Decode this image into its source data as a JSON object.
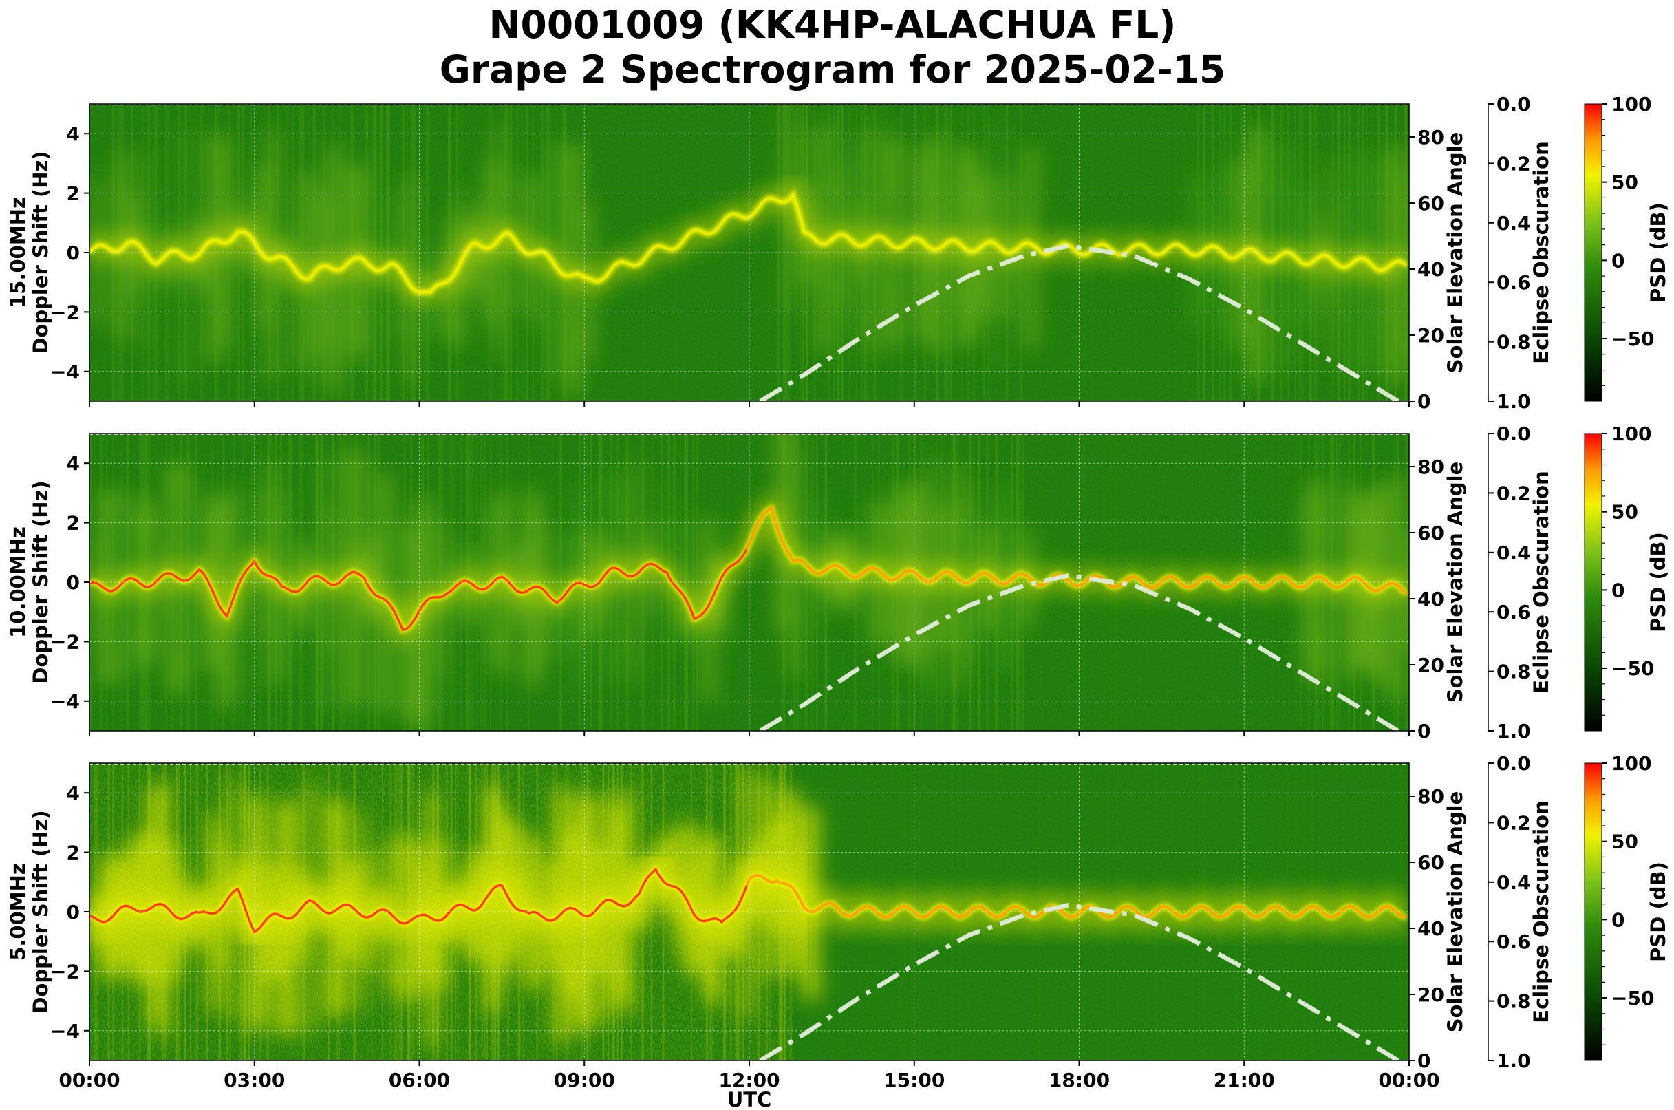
{
  "figure": {
    "title_line1": "N0001009 (KK4HP-ALACHUA FL)",
    "title_line2": "Grape 2 Spectrogram for 2025-02-15"
  },
  "colors": {
    "bg_green": "#1f7a0a",
    "mid_green": "#3f9d12",
    "yellow": "#f2f200",
    "orange": "#ff9a00",
    "red": "#ff1a00",
    "solar_curve": "#dbe8d2",
    "grid": "#ffffff"
  },
  "chart_data": [
    {
      "type": "heatmap",
      "panel": "15.00MHz",
      "ylabel": "15.00MHz\nDoppler Shift (Hz)",
      "ylabel_line1": "15.00MHz",
      "ylabel_line2": "Doppler Shift (Hz)",
      "xlim_hours": [
        0,
        24
      ],
      "ylim": [
        -5,
        5
      ],
      "yticks": [
        "4",
        "2",
        "0",
        "−2",
        "−4"
      ],
      "right_axis": {
        "label": "Solar Elevation Angle",
        "ylim": [
          0,
          90
        ],
        "ticks": [
          "0",
          "20",
          "40",
          "60",
          "80"
        ]
      },
      "eclipse_axis": {
        "label": "Eclipse Obscuration",
        "ylim": [
          0,
          1
        ],
        "inverted": true,
        "ticks": [
          "0.0",
          "0.2",
          "0.4",
          "0.6",
          "0.8",
          "1.0"
        ]
      },
      "colorbar": {
        "label": "PSD (dB)",
        "range": [
          -90,
          100
        ],
        "ticks": [
          "100",
          "50",
          "0",
          "−50"
        ]
      },
      "solar_elevation": {
        "hours": [
          12.2,
          13,
          14,
          15,
          16,
          17,
          17.8,
          19,
          20,
          21,
          22,
          23,
          23.8
        ],
        "values": [
          0,
          8,
          19,
          29,
          38,
          44,
          47,
          44,
          37,
          28,
          18,
          8,
          0
        ]
      },
      "signal_trace": {
        "hours": [
          0,
          0.7,
          1.2,
          2,
          2.7,
          3.2,
          4,
          4.7,
          5.5,
          6.2,
          7,
          7.6,
          8.3,
          9,
          12.8,
          13,
          14,
          16,
          18,
          20,
          22,
          24
        ],
        "doppler_hz": [
          0,
          0.3,
          -0.2,
          0,
          0.7,
          0,
          -0.8,
          -0.3,
          -0.5,
          -1.5,
          0.2,
          0.5,
          -0.2,
          -1,
          2,
          0.5,
          0.4,
          0.2,
          0.1,
          0.1,
          -0.2,
          -0.5
        ]
      },
      "noise_level_dB": -40
    },
    {
      "type": "heatmap",
      "panel": "10.00MHz",
      "ylabel": "10.00MHz\nDoppler Shift (Hz)",
      "ylabel_line1": "10.00MHz",
      "ylabel_line2": "Doppler Shift (Hz)",
      "xlim_hours": [
        0,
        24
      ],
      "ylim": [
        -5,
        5
      ],
      "yticks": [
        "4",
        "2",
        "0",
        "−2",
        "−4"
      ],
      "right_axis": {
        "label": "Solar Elevation Angle",
        "ylim": [
          0,
          90
        ],
        "ticks": [
          "0",
          "20",
          "40",
          "60",
          "80"
        ]
      },
      "eclipse_axis": {
        "label": "Eclipse Obscuration",
        "ylim": [
          0,
          1
        ],
        "inverted": true,
        "ticks": [
          "0.0",
          "0.2",
          "0.4",
          "0.6",
          "0.8",
          "1.0"
        ]
      },
      "colorbar": {
        "label": "PSD (dB)",
        "range": [
          -90,
          100
        ],
        "ticks": [
          "100",
          "50",
          "0",
          "−50"
        ]
      },
      "solar_elevation": {
        "hours": [
          12.2,
          13,
          14,
          15,
          16,
          17,
          17.8,
          19,
          20,
          21,
          22,
          23,
          23.8
        ],
        "values": [
          0,
          8,
          19,
          29,
          38,
          44,
          47,
          44,
          37,
          28,
          18,
          8,
          0
        ]
      },
      "signal_trace": {
        "hours": [
          0,
          1,
          2,
          2.5,
          3,
          3.5,
          4,
          5,
          5.7,
          6.5,
          7.5,
          8.5,
          9.5,
          10.5,
          11,
          11.5,
          12.4,
          12.8,
          13.5,
          15,
          17,
          19,
          21,
          23,
          24
        ],
        "doppler_hz": [
          -0.2,
          0,
          0.3,
          -1,
          0.8,
          -0.3,
          0,
          0.2,
          -1.5,
          -0.2,
          0,
          -0.5,
          0.3,
          0.5,
          -1.3,
          0,
          2.5,
          0.6,
          0.4,
          0.2,
          0.1,
          0,
          0,
          0,
          -0.3
        ]
      },
      "noise_level_dB": -30
    },
    {
      "type": "heatmap",
      "panel": "5.00MHz",
      "ylabel": "5.00MHz\nDoppler Shift (Hz)",
      "ylabel_line1": "5.00MHz",
      "ylabel_line2": "Doppler Shift (Hz)",
      "xlim_hours": [
        0,
        24
      ],
      "ylim": [
        -5,
        5
      ],
      "xticks": [
        "00:00",
        "03:00",
        "06:00",
        "09:00",
        "12:00",
        "15:00",
        "18:00",
        "21:00",
        "00:00"
      ],
      "xlabel": "UTC",
      "yticks": [
        "4",
        "2",
        "0",
        "−2",
        "−4"
      ],
      "right_axis": {
        "label": "Solar Elevation Angle",
        "ylim": [
          0,
          90
        ],
        "ticks": [
          "0",
          "20",
          "40",
          "60",
          "80"
        ]
      },
      "eclipse_axis": {
        "label": "Eclipse Obscuration",
        "ylim": [
          0,
          1
        ],
        "inverted": true,
        "ticks": [
          "0.0",
          "0.2",
          "0.4",
          "0.6",
          "0.8",
          "1.0"
        ]
      },
      "colorbar": {
        "label": "PSD (dB)",
        "range": [
          -90,
          100
        ],
        "ticks": [
          "100",
          "50",
          "0",
          "−50"
        ]
      },
      "solar_elevation": {
        "hours": [
          12.2,
          13,
          14,
          15,
          16,
          17,
          17.8,
          19,
          20,
          21,
          22,
          23,
          23.8
        ],
        "values": [
          0,
          8,
          19,
          29,
          38,
          44,
          47,
          44,
          37,
          28,
          18,
          8,
          0
        ]
      },
      "signal_trace": {
        "hours": [
          0,
          1,
          2,
          2.7,
          3,
          4,
          5,
          6,
          7,
          7.5,
          8,
          9,
          10,
          10.3,
          11,
          11.5,
          12,
          12.5,
          13,
          14,
          16,
          18,
          20,
          22,
          24
        ],
        "doppler_hz": [
          -0.3,
          0.2,
          -0.2,
          0.6,
          -0.5,
          0.2,
          0,
          -0.3,
          0.2,
          0.8,
          -0.2,
          0,
          0.5,
          1.5,
          0,
          -0.5,
          1,
          1.2,
          0.2,
          0,
          0,
          0,
          0,
          0,
          0
        ]
      },
      "noise_level_dB": 10
    }
  ]
}
